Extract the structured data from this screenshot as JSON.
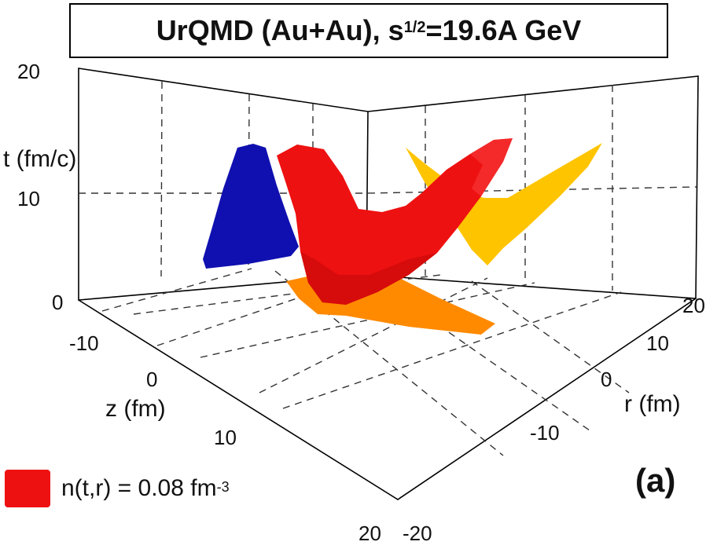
{
  "title": {
    "prefix": "UrQMD (Au+Au), s",
    "superscript": "1/2",
    "suffix": "=19.6A GeV"
  },
  "panel_label": "(a)",
  "legend": {
    "color": "#ee1111",
    "text_prefix": "n(t,r) = 0.08 fm",
    "text_superscript": "-3"
  },
  "chart_data": {
    "type": "surface3d",
    "axes": {
      "t": {
        "label": "t (fm/c)",
        "ticks": [
          "0",
          "10",
          "20"
        ],
        "range": [
          0,
          20
        ]
      },
      "z": {
        "label": "z (fm)",
        "ticks": [
          "-10",
          "0",
          "10",
          "20"
        ],
        "range": [
          -20,
          20
        ]
      },
      "r": {
        "label": "r (fm)",
        "ticks": [
          "-20",
          "-10",
          "0",
          "10",
          "20"
        ],
        "range": [
          -20,
          20
        ]
      }
    },
    "isosurface": {
      "quantity": "n(t,r)",
      "value": 0.08,
      "unit": "fm^-3",
      "color": "#ee1111"
    },
    "projections": [
      {
        "plane": "t-z",
        "color": "#1010b0"
      },
      {
        "plane": "t-r",
        "color": "#ffc400"
      },
      {
        "plane": "z-r",
        "color": "#ff8a00"
      }
    ],
    "grid": true
  }
}
